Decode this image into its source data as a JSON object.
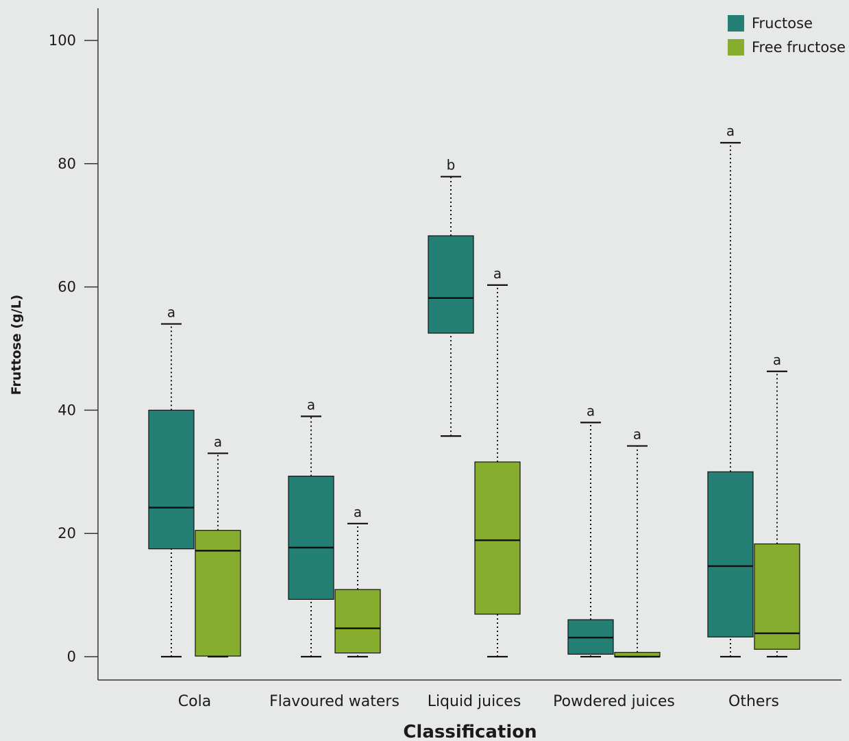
{
  "colors": {
    "background": "#e6e9e7",
    "fructose": "#247f74",
    "free_fructose": "#87ad2f",
    "axis": "#333333"
  },
  "chart_data": {
    "type": "boxplot",
    "xlabel": "Classification",
    "ylabel": "Fruttose (g/L)",
    "ylim": [
      0,
      100
    ],
    "yticks": [
      0,
      20,
      40,
      60,
      80,
      100
    ],
    "legend_position": "top-right",
    "grid": false,
    "categories": [
      "Cola",
      "Flavoured waters",
      "Liquid juices",
      "Powdered juices",
      "Others"
    ],
    "series": [
      {
        "name": "Fructose",
        "color": "#247f74",
        "boxes": [
          {
            "min": 0,
            "q1": 17.5,
            "median": 24.2,
            "q3": 40.0,
            "max": 54.0,
            "label": "a"
          },
          {
            "min": 0,
            "q1": 9.3,
            "median": 17.7,
            "q3": 29.3,
            "max": 39.0,
            "label": "a"
          },
          {
            "min": 35.8,
            "q1": 52.5,
            "median": 58.2,
            "q3": 68.3,
            "max": 77.9,
            "label": "b"
          },
          {
            "min": 0,
            "q1": 0.4,
            "median": 3.1,
            "q3": 6.0,
            "max": 38.0,
            "label": "a"
          },
          {
            "min": 0,
            "q1": 3.2,
            "median": 14.7,
            "q3": 30.0,
            "max": 83.4,
            "label": "a"
          }
        ]
      },
      {
        "name": "Free fructose",
        "color": "#87ad2f",
        "boxes": [
          {
            "min": 0,
            "q1": 0.1,
            "median": 17.2,
            "q3": 20.5,
            "max": 33.0,
            "label": "a"
          },
          {
            "min": 0,
            "q1": 0.6,
            "median": 4.6,
            "q3": 10.9,
            "max": 21.6,
            "label": "a"
          },
          {
            "min": 0,
            "q1": 6.9,
            "median": 18.9,
            "q3": 31.6,
            "max": 60.3,
            "label": "a"
          },
          {
            "min": 0,
            "q1": 0,
            "median": 0,
            "q3": 0.7,
            "max": 34.2,
            "label": "a"
          },
          {
            "min": 0,
            "q1": 1.2,
            "median": 3.8,
            "q3": 18.3,
            "max": 46.3,
            "label": "a"
          }
        ]
      }
    ]
  }
}
